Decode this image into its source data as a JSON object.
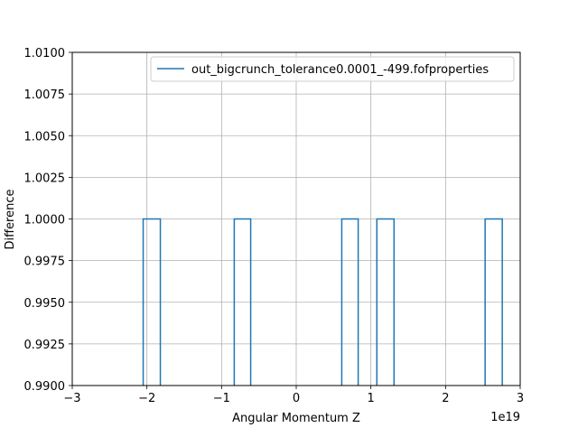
{
  "chart_data": {
    "type": "step",
    "xlabel": "Angular Momentum Z",
    "ylabel": "Difference",
    "x_offset_label": "1e19",
    "xlim": [
      -3,
      3
    ],
    "ylim": [
      0.99,
      1.01
    ],
    "x_ticks": [
      -3,
      -2,
      -1,
      0,
      1,
      2,
      3
    ],
    "x_tick_labels": [
      "−3",
      "−2",
      "−1",
      "0",
      "1",
      "2",
      "3"
    ],
    "y_ticks": [
      0.99,
      0.9925,
      0.995,
      0.9975,
      1.0,
      1.0025,
      1.005,
      1.0075,
      1.01
    ],
    "y_tick_labels": [
      "0.9900",
      "0.9925",
      "0.9950",
      "0.9975",
      "1.0000",
      "1.0025",
      "1.0050",
      "1.0075",
      "1.0100"
    ],
    "grid": true,
    "legend_position": "top-right",
    "colors": {
      "series": "#1f77b4",
      "grid": "#b0b0b0",
      "axes": "#000000"
    },
    "series": [
      {
        "name": "out_bigcrunch_tolerance0.0001_-499.fofproperties",
        "segments": [
          {
            "x_start": -2.05,
            "x_end": -1.82,
            "y": 1.0
          },
          {
            "x_start": -0.83,
            "x_end": -0.61,
            "y": 1.0
          },
          {
            "x_start": 0.61,
            "x_end": 0.83,
            "y": 1.0
          },
          {
            "x_start": 1.08,
            "x_end": 1.31,
            "y": 1.0
          },
          {
            "x_start": 2.53,
            "x_end": 2.76,
            "y": 1.0
          }
        ]
      }
    ]
  }
}
